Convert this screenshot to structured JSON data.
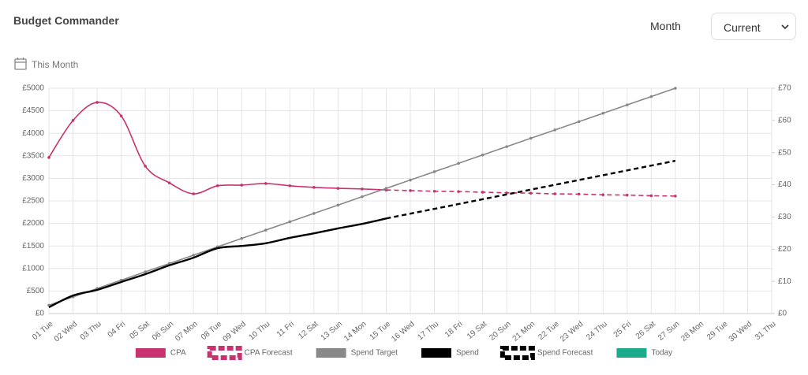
{
  "header": {
    "title": "Budget Commander",
    "month_label": "Month",
    "month_select": "Current",
    "period_label": "This Month"
  },
  "chart_data": {
    "type": "line",
    "categories": [
      "01 Tue",
      "02 Wed",
      "03 Thu",
      "04 Fri",
      "05 Sat",
      "06 Sun",
      "07 Mon",
      "08 Tue",
      "09 Wed",
      "10 Thu",
      "11 Fri",
      "12 Sat",
      "13 Sun",
      "14 Mon",
      "15 Tue",
      "16 Wed",
      "17 Thu",
      "18 Fri",
      "19 Sat",
      "20 Sun",
      "21 Mon",
      "22 Tue",
      "23 Wed",
      "24 Thu",
      "25 Fri",
      "26 Sat",
      "27 Sun",
      "28 Mon",
      "29 Tue",
      "30 Wed",
      "31 Thu"
    ],
    "ylim": [
      0,
      5000
    ],
    "yticks": [
      {
        "value": 0,
        "label": "£0"
      },
      {
        "value": 500,
        "label": "£500"
      },
      {
        "value": 1000,
        "label": "£1000"
      },
      {
        "value": 1500,
        "label": "£1500"
      },
      {
        "value": 2000,
        "label": "£2000"
      },
      {
        "value": 2500,
        "label": "£2500"
      },
      {
        "value": 3000,
        "label": "£3000"
      },
      {
        "value": 3500,
        "label": "£3500"
      },
      {
        "value": 4000,
        "label": "£4000"
      },
      {
        "value": 4500,
        "label": "£4500"
      },
      {
        "value": 5000,
        "label": "£5000"
      }
    ],
    "y2lim": [
      0,
      70
    ],
    "y2ticks": [
      {
        "value": 0,
        "label": "£0"
      },
      {
        "value": 10,
        "label": "£10"
      },
      {
        "value": 20,
        "label": "£20"
      },
      {
        "value": 30,
        "label": "£30"
      },
      {
        "value": 40,
        "label": "£40"
      },
      {
        "value": 50,
        "label": "£50"
      },
      {
        "value": 60,
        "label": "£60"
      },
      {
        "value": 70,
        "label": "£70"
      }
    ],
    "grid": true,
    "series": [
      {
        "name": "CPA",
        "color": "#c8326f",
        "axis": "y2",
        "dashed": false,
        "markers": true,
        "values": [
          48.5,
          60,
          65.6,
          61.4,
          45.8,
          40.6,
          37.2,
          39.7,
          39.9,
          40.4,
          39.7,
          39.2,
          38.9,
          38.7,
          38.4,
          null,
          null,
          null,
          null,
          null,
          null,
          null,
          null,
          null,
          null,
          null,
          null,
          null,
          null,
          null,
          null
        ]
      },
      {
        "name": "CPA Forecast",
        "color": "#c8326f",
        "axis": "y2",
        "dashed": true,
        "markers": true,
        "values": [
          null,
          null,
          null,
          null,
          null,
          null,
          null,
          null,
          null,
          null,
          null,
          null,
          null,
          null,
          38.4,
          38.2,
          38.0,
          37.9,
          37.7,
          37.5,
          37.4,
          37.2,
          37.1,
          36.9,
          36.8,
          36.6,
          36.5,
          null,
          null,
          null,
          null
        ]
      },
      {
        "name": "Spend Target",
        "color": "#888888",
        "dashed": false,
        "markers": true,
        "values": [
          185,
          370,
          556,
          741,
          926,
          1111,
          1296,
          1481,
          1667,
          1852,
          2037,
          2222,
          2407,
          2593,
          2778,
          2963,
          3148,
          3333,
          3519,
          3704,
          3889,
          4074,
          4259,
          4444,
          4630,
          4815,
          5000,
          null,
          null,
          null,
          null
        ]
      },
      {
        "name": "Spend",
        "color": "#000000",
        "dashed": false,
        "markers": false,
        "values": [
          140,
          400,
          525,
          700,
          875,
          1070,
          1240,
          1450,
          1500,
          1560,
          1680,
          1780,
          1890,
          1990,
          2110,
          null,
          null,
          null,
          null,
          null,
          null,
          null,
          null,
          null,
          null,
          null,
          null,
          null,
          null,
          null,
          null
        ]
      },
      {
        "name": "Spend Forecast",
        "color": "#000000",
        "dashed": true,
        "markers": false,
        "values": [
          null,
          null,
          null,
          null,
          null,
          null,
          null,
          null,
          null,
          null,
          null,
          null,
          null,
          null,
          2110,
          2217,
          2323,
          2430,
          2537,
          2643,
          2750,
          2857,
          2963,
          3070,
          3177,
          3283,
          3390,
          null,
          null,
          null,
          null
        ]
      },
      {
        "name": "Today",
        "color": "#1aab8a"
      }
    ]
  }
}
